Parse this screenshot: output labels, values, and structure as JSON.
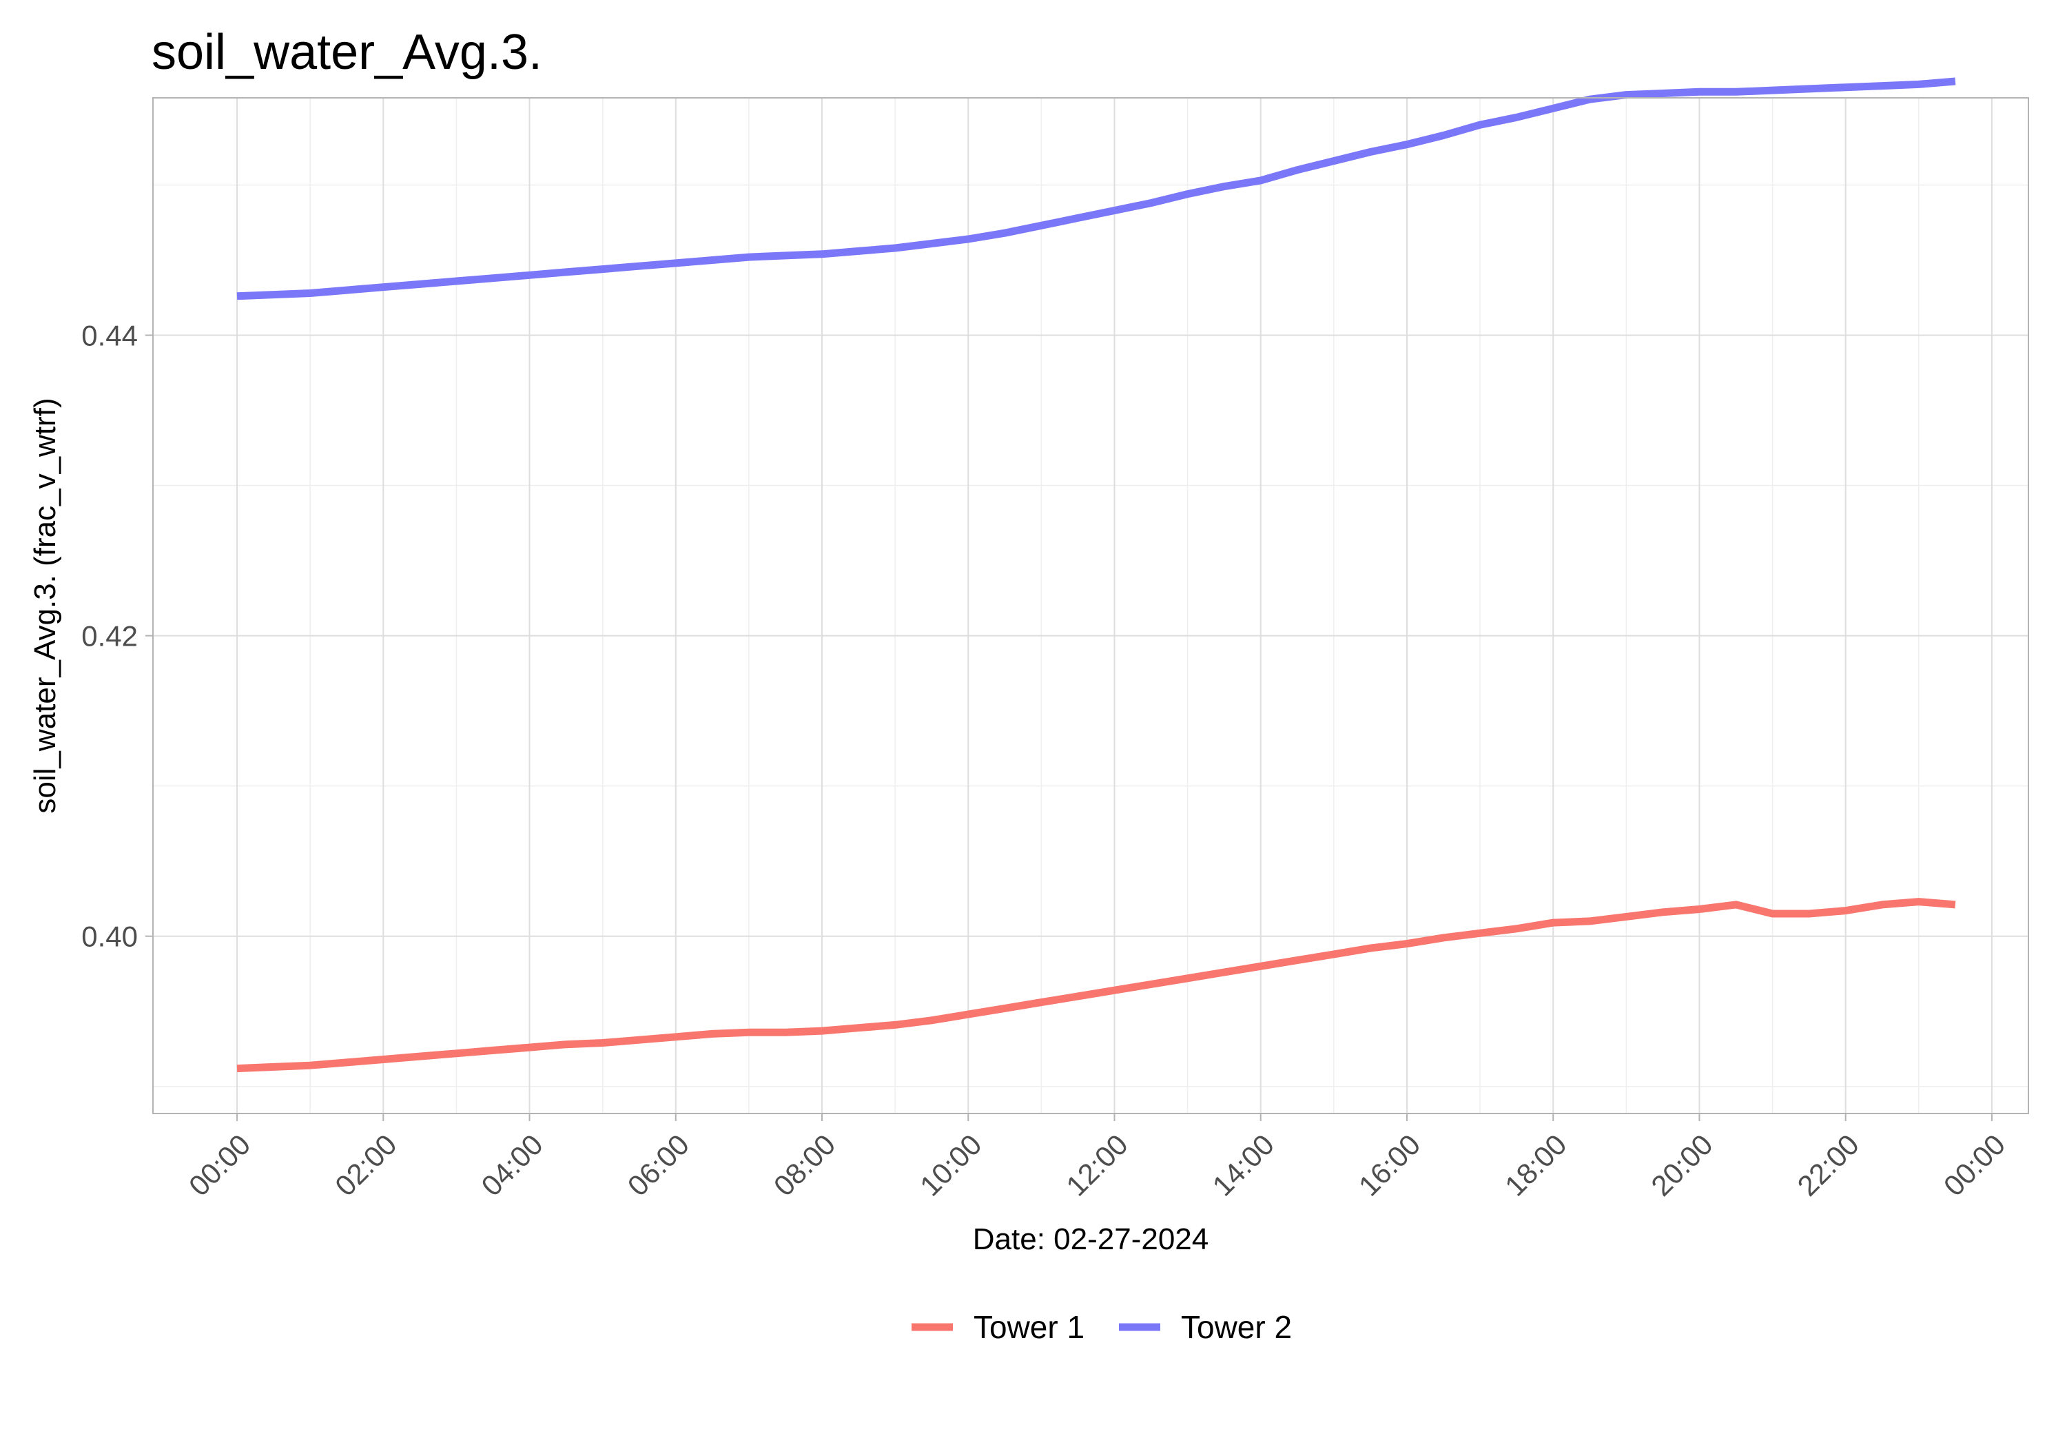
{
  "chart_data": {
    "type": "line",
    "title": "soil_water_Avg.3.",
    "xlabel": "Date: 02-27-2024",
    "ylabel": "soil_water_Avg.3. (frac_v_wtrf)",
    "x_ticks": [
      "00:00",
      "02:00",
      "04:00",
      "06:00",
      "08:00",
      "10:00",
      "12:00",
      "14:00",
      "16:00",
      "18:00",
      "20:00",
      "22:00",
      "00:00"
    ],
    "y_ticks": [
      "0.40",
      "0.42",
      "0.44"
    ],
    "xlim_hours": [
      -1.15,
      24.5
    ],
    "ylim": [
      0.3882,
      0.4558
    ],
    "grid": true,
    "legend_position": "bottom",
    "x": [
      0,
      0.5,
      1,
      1.5,
      2,
      2.5,
      3,
      3.5,
      4,
      4.5,
      5,
      5.5,
      6,
      6.5,
      7,
      7.5,
      8,
      8.5,
      9,
      9.5,
      10,
      10.5,
      11,
      11.5,
      12,
      12.5,
      13,
      13.5,
      14,
      14.5,
      15,
      15.5,
      16,
      16.5,
      17,
      17.5,
      18,
      18.5,
      19,
      19.5,
      20,
      20.5,
      21,
      21.5,
      22,
      22.5,
      23,
      23.5
    ],
    "series": [
      {
        "name": "Tower 1",
        "color": "#F8766D",
        "values": [
          0.3912,
          0.3913,
          0.3914,
          0.3916,
          0.3918,
          0.392,
          0.3922,
          0.3924,
          0.3926,
          0.3928,
          0.3929,
          0.3931,
          0.3933,
          0.3935,
          0.3936,
          0.3936,
          0.3937,
          0.3939,
          0.3941,
          0.3944,
          0.3948,
          0.3952,
          0.3956,
          0.396,
          0.3964,
          0.3968,
          0.3972,
          0.3976,
          0.398,
          0.3984,
          0.3988,
          0.3992,
          0.3995,
          0.3999,
          0.4002,
          0.4005,
          0.4009,
          0.401,
          0.4013,
          0.4016,
          0.4018,
          0.4021,
          0.4015,
          0.4015,
          0.4017,
          0.4021,
          0.4023,
          0.4021
        ]
      },
      {
        "name": "Tower 2",
        "color": "#7B77F9",
        "values": [
          0.4426,
          0.4427,
          0.4428,
          0.443,
          0.4432,
          0.4434,
          0.4436,
          0.4438,
          0.444,
          0.4442,
          0.4444,
          0.4446,
          0.4448,
          0.445,
          0.4452,
          0.4453,
          0.4454,
          0.4456,
          0.4458,
          0.4461,
          0.4464,
          0.4468,
          0.4473,
          0.4478,
          0.4483,
          0.4488,
          0.4494,
          0.4499,
          0.4503,
          0.451,
          0.4516,
          0.4522,
          0.4527,
          0.4533,
          0.454,
          0.4545,
          0.4551,
          0.4557,
          0.456,
          0.4561,
          0.4562,
          0.4562,
          0.4563,
          0.4564,
          0.4565,
          0.4566,
          0.4567,
          0.4569
        ]
      }
    ]
  }
}
